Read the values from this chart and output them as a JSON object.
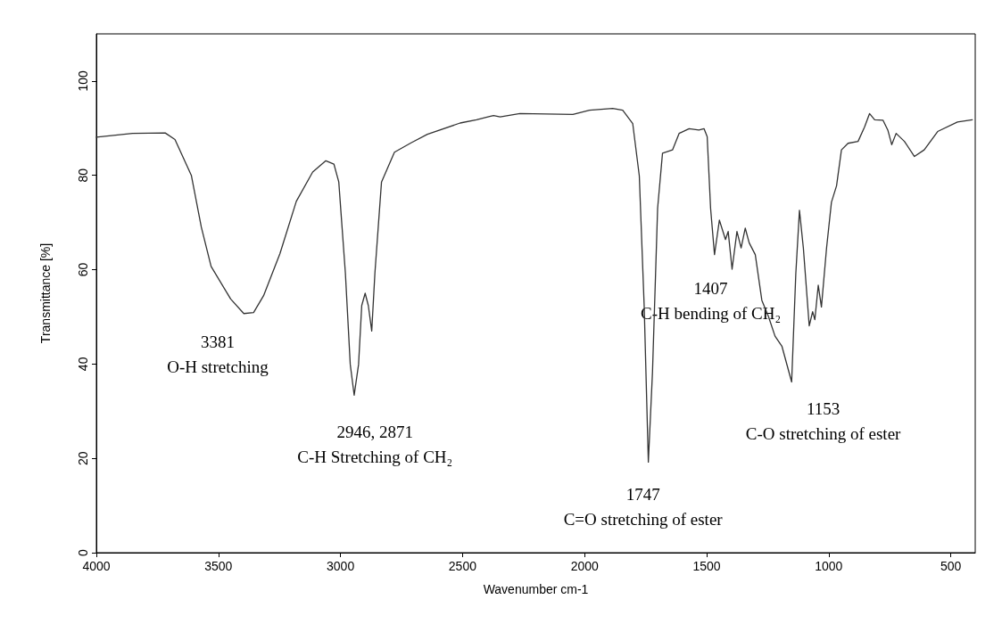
{
  "chart_data": {
    "type": "line",
    "xlabel": "Wavenumber cm-1",
    "ylabel": "Transmittance [%]",
    "xlim": [
      4000,
      400
    ],
    "xticks": [
      4000,
      3500,
      3000,
      2500,
      2000,
      1500,
      1000,
      500
    ],
    "ylim": [
      0,
      110
    ],
    "yticks": [
      0,
      20,
      40,
      60,
      80,
      100
    ],
    "grid": false,
    "marker": "none",
    "line_style": "solid",
    "series": [
      {
        "color": "#333333",
        "x": [
          4000,
          3852,
          3718,
          3678,
          3611,
          3570,
          3530,
          3450,
          3396,
          3356,
          3315,
          3248,
          3181,
          3114,
          3060,
          3027,
          3007,
          2980,
          2960,
          2944,
          2926,
          2913,
          2899,
          2886,
          2872,
          2859,
          2832,
          2779,
          2711,
          2644,
          2510,
          2443,
          2389,
          2373,
          2346,
          2265,
          2048,
          1980,
          1885,
          1844,
          1803,
          1776,
          1756,
          1739,
          1722,
          1701,
          1681,
          1640,
          1613,
          1572,
          1532,
          1511,
          1498,
          1484,
          1468,
          1448,
          1423,
          1412,
          1396,
          1376,
          1359,
          1342,
          1326,
          1301,
          1274,
          1247,
          1220,
          1192,
          1152,
          1135,
          1120,
          1104,
          1080,
          1066,
          1057,
          1043,
          1030,
          1009,
          989,
          968,
          948,
          921,
          880,
          853,
          833,
          812,
          778,
          758,
          742,
          724,
          690,
          649,
          609,
          554,
          473,
          412
        ],
        "values": [
          88.1,
          88.9,
          89.0,
          87.6,
          80.0,
          69.0,
          60.7,
          53.8,
          50.7,
          50.9,
          54.5,
          63.4,
          74.5,
          80.7,
          83.1,
          82.4,
          78.6,
          59.3,
          39.9,
          33.4,
          39.9,
          52.4,
          55.0,
          52.4,
          47.0,
          59.3,
          78.6,
          84.9,
          86.9,
          88.7,
          91.1,
          91.8,
          92.5,
          92.7,
          92.4,
          93.1,
          92.9,
          93.8,
          94.2,
          93.8,
          91.0,
          79.9,
          52.2,
          19.2,
          38.3,
          73.0,
          84.7,
          85.4,
          88.9,
          89.9,
          89.6,
          89.9,
          88.2,
          73.0,
          63.2,
          70.5,
          66.4,
          68.1,
          60.1,
          68.1,
          64.6,
          68.8,
          65.7,
          63.2,
          53.5,
          50.1,
          45.9,
          43.8,
          36.2,
          59.1,
          72.6,
          64.6,
          48.1,
          51.1,
          49.4,
          56.7,
          52.1,
          64.6,
          74.3,
          77.8,
          85.4,
          86.8,
          87.2,
          90.3,
          93.1,
          91.8,
          91.7,
          89.6,
          86.5,
          88.9,
          87.2,
          84.0,
          85.4,
          89.3,
          91.3,
          91.8
        ]
      }
    ],
    "annotations": [
      "3381\nO-H stretching",
      "2946, 2871\nC-H Stretching of CH₂",
      "1407\nC-H bending of CH₂",
      "1747\nC=O stretching of ester",
      "1153\nC-O stretching of ester"
    ]
  }
}
